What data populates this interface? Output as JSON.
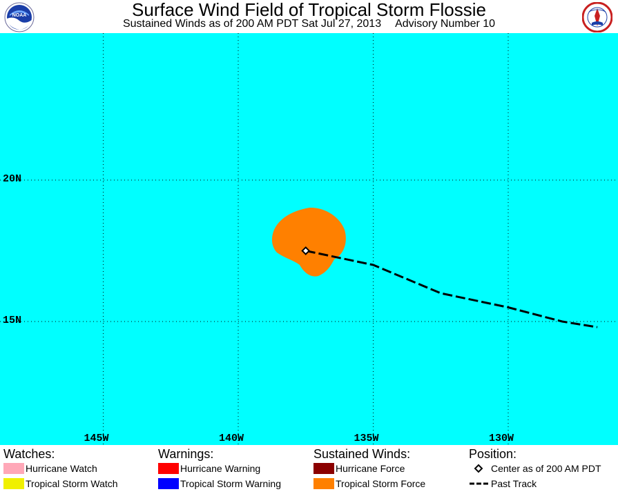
{
  "header": {
    "title": "Surface Wind Field of Tropical Storm Flossie",
    "subtitle_time": "Sustained Winds as of 200 AM PDT Sat Jul 27, 2013",
    "subtitle_advisory": "Advisory Number 10",
    "left_logo": "noaa-logo",
    "left_logo_text": "NOAA",
    "right_logo": "national-weather-service-logo"
  },
  "map": {
    "ocean_color": "#00ffff",
    "grid": "dotted",
    "lat_labels": [
      "20N",
      "15N"
    ],
    "lon_labels": [
      "145W",
      "140W",
      "135W",
      "130W"
    ],
    "storm_center": {
      "lat": 17.5,
      "lon": -137.5
    },
    "wind_field": {
      "type": "tropical-storm-force",
      "color": "#ff8000"
    },
    "past_track": {
      "style": "dashed",
      "points": [
        {
          "lat": 17.5,
          "lon": -137.5
        },
        {
          "lat": 17.0,
          "lon": -135.0
        },
        {
          "lat": 16.0,
          "lon": -132.5
        },
        {
          "lat": 15.5,
          "lon": -130.0
        },
        {
          "lat": 15.0,
          "lon": -128.0
        },
        {
          "lat": 14.8,
          "lon": -126.7
        }
      ]
    }
  },
  "legend": {
    "watches": {
      "heading": "Watches:",
      "items": [
        {
          "label": "Hurricane Watch",
          "color": "#ffa8b8"
        },
        {
          "label": "Tropical Storm Watch",
          "color": "#f0f000"
        }
      ]
    },
    "warnings": {
      "heading": "Warnings:",
      "items": [
        {
          "label": "Hurricane Warning",
          "color": "#ff0000"
        },
        {
          "label": "Tropical Storm Warning",
          "color": "#0000ff"
        }
      ]
    },
    "winds": {
      "heading": "Sustained Winds:",
      "items": [
        {
          "label": "Hurricane Force",
          "color": "#8b0000"
        },
        {
          "label": "Tropical Storm Force",
          "color": "#ff8000"
        }
      ]
    },
    "position": {
      "heading": "Position:",
      "items": [
        {
          "label": "Center as of 200 AM PDT",
          "icon": "diamond-icon"
        },
        {
          "label": "Past Track",
          "icon": "dashed-line-icon"
        }
      ]
    }
  }
}
